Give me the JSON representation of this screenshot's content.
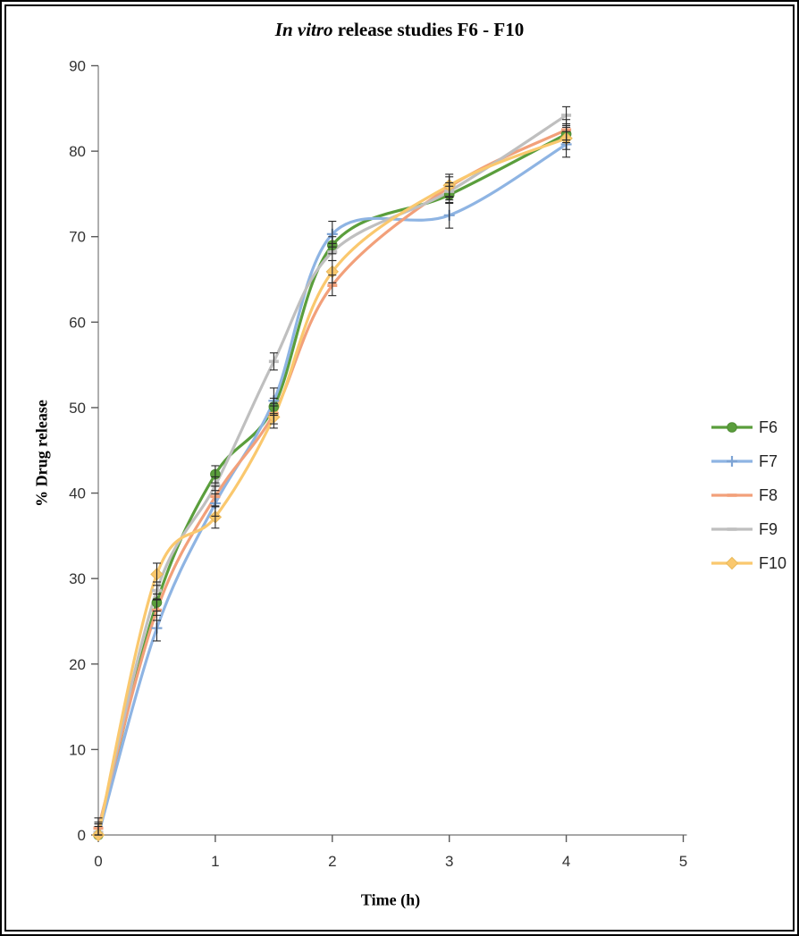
{
  "title": {
    "italic_part": "In vitro",
    "regular_part": " release studies F6 - F10"
  },
  "axes": {
    "x_label": "Time (h)",
    "y_label": "% Drug release",
    "x_ticks": [
      0,
      1,
      2,
      3,
      4,
      5
    ],
    "y_ticks": [
      0,
      10,
      20,
      30,
      40,
      50,
      60,
      70,
      80,
      90
    ],
    "axis_color": "#8C8C8C",
    "tick_color": "#595959",
    "tick_label_color": "#333333"
  },
  "legend": {
    "items": [
      "F6",
      "F7",
      "F8",
      "F9",
      "F10"
    ]
  },
  "error_bar_color": "#262626",
  "chart_data": {
    "type": "line",
    "title": "In vitro release studies F6 - F10",
    "xlabel": "Time (h)",
    "ylabel": "% Drug release",
    "xlim": [
      0,
      5
    ],
    "ylim": [
      0,
      90
    ],
    "grid": false,
    "legend_position": "right",
    "smooth": true,
    "x": [
      0,
      0.5,
      1,
      1.5,
      2,
      3,
      4
    ],
    "series": [
      {
        "name": "F6",
        "color": "#5A9E3C",
        "marker_stroke": "#4E8C33",
        "marker": "circle",
        "err": 1.0,
        "values": [
          0,
          27.2,
          42.2,
          50.1,
          69.0,
          74.9,
          82.0
        ]
      },
      {
        "name": "F7",
        "color": "#8EB4E3",
        "marker_stroke": "#7EA4D4",
        "marker": "plus",
        "err": 1.5,
        "values": [
          0,
          24.2,
          38.8,
          50.8,
          70.3,
          72.5,
          80.8
        ]
      },
      {
        "name": "F8",
        "color": "#F2A07A",
        "marker_stroke": "#F2A07A",
        "marker": "dash",
        "err": 1.2,
        "values": [
          0.8,
          26.3,
          39.6,
          49.3,
          64.3,
          75.8,
          82.5
        ]
      },
      {
        "name": "F9",
        "color": "#BFBFBF",
        "marker_stroke": "#BFBFBF",
        "marker": "dash",
        "err": 1.0,
        "values": [
          0.3,
          28.6,
          40.9,
          55.4,
          68.2,
          75.3,
          84.2
        ]
      },
      {
        "name": "F10",
        "color": "#FAC86E",
        "marker_stroke": "#E9B959",
        "marker": "diamond",
        "err": 1.3,
        "values": [
          0,
          30.5,
          37.2,
          48.9,
          65.9,
          76.0,
          81.5
        ]
      }
    ]
  }
}
